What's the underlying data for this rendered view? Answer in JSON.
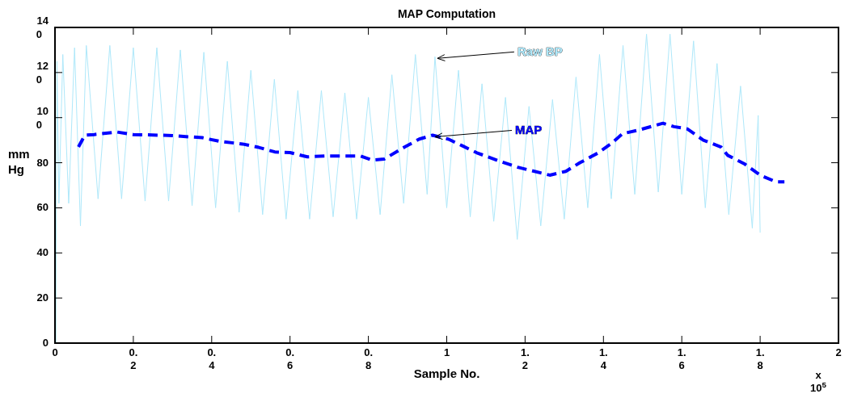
{
  "chart_data": {
    "type": "line",
    "title": "MAP Computation",
    "xlabel": "Sample No.",
    "ylabel": "mm Hg",
    "xlim": [
      0,
      2
    ],
    "xticks": [
      0,
      0.2,
      0.4,
      0.6,
      0.8,
      1,
      1.2,
      1.4,
      1.6,
      1.8,
      2
    ],
    "ylim": [
      0,
      140
    ],
    "yticks": [
      0,
      20,
      40,
      60,
      80,
      100,
      120,
      140
    ],
    "grid": false,
    "marker": "none",
    "series": [
      {
        "name": "Raw BP",
        "color": "#aee8fa",
        "line_style": "solid",
        "x": [
          0,
          0.002,
          0.005,
          0.01,
          0.02,
          0.035,
          0.05,
          0.065,
          0.08,
          0.11,
          0.14,
          0.17,
          0.2,
          0.23,
          0.26,
          0.29,
          0.32,
          0.35,
          0.38,
          0.41,
          0.44,
          0.47,
          0.5,
          0.53,
          0.56,
          0.59,
          0.62,
          0.65,
          0.68,
          0.71,
          0.74,
          0.77,
          0.8,
          0.83,
          0.86,
          0.89,
          0.92,
          0.95,
          0.97,
          1,
          1.03,
          1.06,
          1.09,
          1.12,
          1.15,
          1.18,
          1.21,
          1.24,
          1.27,
          1.3,
          1.33,
          1.36,
          1.39,
          1.42,
          1.45,
          1.48,
          1.51,
          1.54,
          1.57,
          1.6,
          1.63,
          1.66,
          1.69,
          1.72,
          1.75,
          1.78,
          1.795,
          1.8
        ],
        "values": [
          125,
          0,
          125,
          62,
          128,
          62,
          131,
          52,
          132,
          64,
          132,
          64,
          131,
          63,
          131,
          63,
          130,
          61,
          129,
          60,
          125,
          58,
          121,
          57,
          117,
          55,
          112,
          55,
          112,
          56,
          111,
          55,
          109,
          57,
          119,
          62,
          128,
          66,
          127,
          60,
          121,
          56,
          115,
          54,
          109,
          46,
          105,
          52,
          108,
          55,
          118,
          60,
          128,
          64,
          132,
          66,
          137,
          67,
          137,
          66,
          134,
          60,
          124,
          57,
          114,
          51,
          101,
          49
        ]
      },
      {
        "name": "MAP",
        "color": "#0000ff",
        "line_style": "dashed",
        "x": [
          0.06,
          0.076,
          0.1,
          0.159,
          0.2,
          0.272,
          0.3,
          0.376,
          0.42,
          0.479,
          0.52,
          0.561,
          0.6,
          0.644,
          0.69,
          0.747,
          0.78,
          0.809,
          0.84,
          0.892,
          0.93,
          0.964,
          1.005,
          1.04,
          1.077,
          1.13,
          1.181,
          1.263,
          1.304,
          1.34,
          1.387,
          1.42,
          1.449,
          1.49,
          1.552,
          1.58,
          1.614,
          1.655,
          1.7,
          1.717,
          1.76,
          1.8,
          1.841,
          1.862
        ],
        "values": [
          87,
          92.2,
          92.5,
          93.6,
          92.5,
          92.2,
          92,
          91.1,
          89.5,
          88.3,
          86.8,
          84.8,
          84.5,
          82.6,
          83,
          83,
          83,
          81.2,
          81.6,
          86.9,
          90.5,
          92.2,
          90.4,
          87.5,
          84.4,
          81,
          78,
          74.5,
          76.2,
          80,
          84.4,
          88.5,
          92.9,
          94.5,
          97.5,
          96,
          95,
          90,
          87,
          83.3,
          79.5,
          74.5,
          71.5,
          71.5
        ]
      }
    ],
    "annotations": [
      "x 10$^{5}$"
    ]
  }
}
